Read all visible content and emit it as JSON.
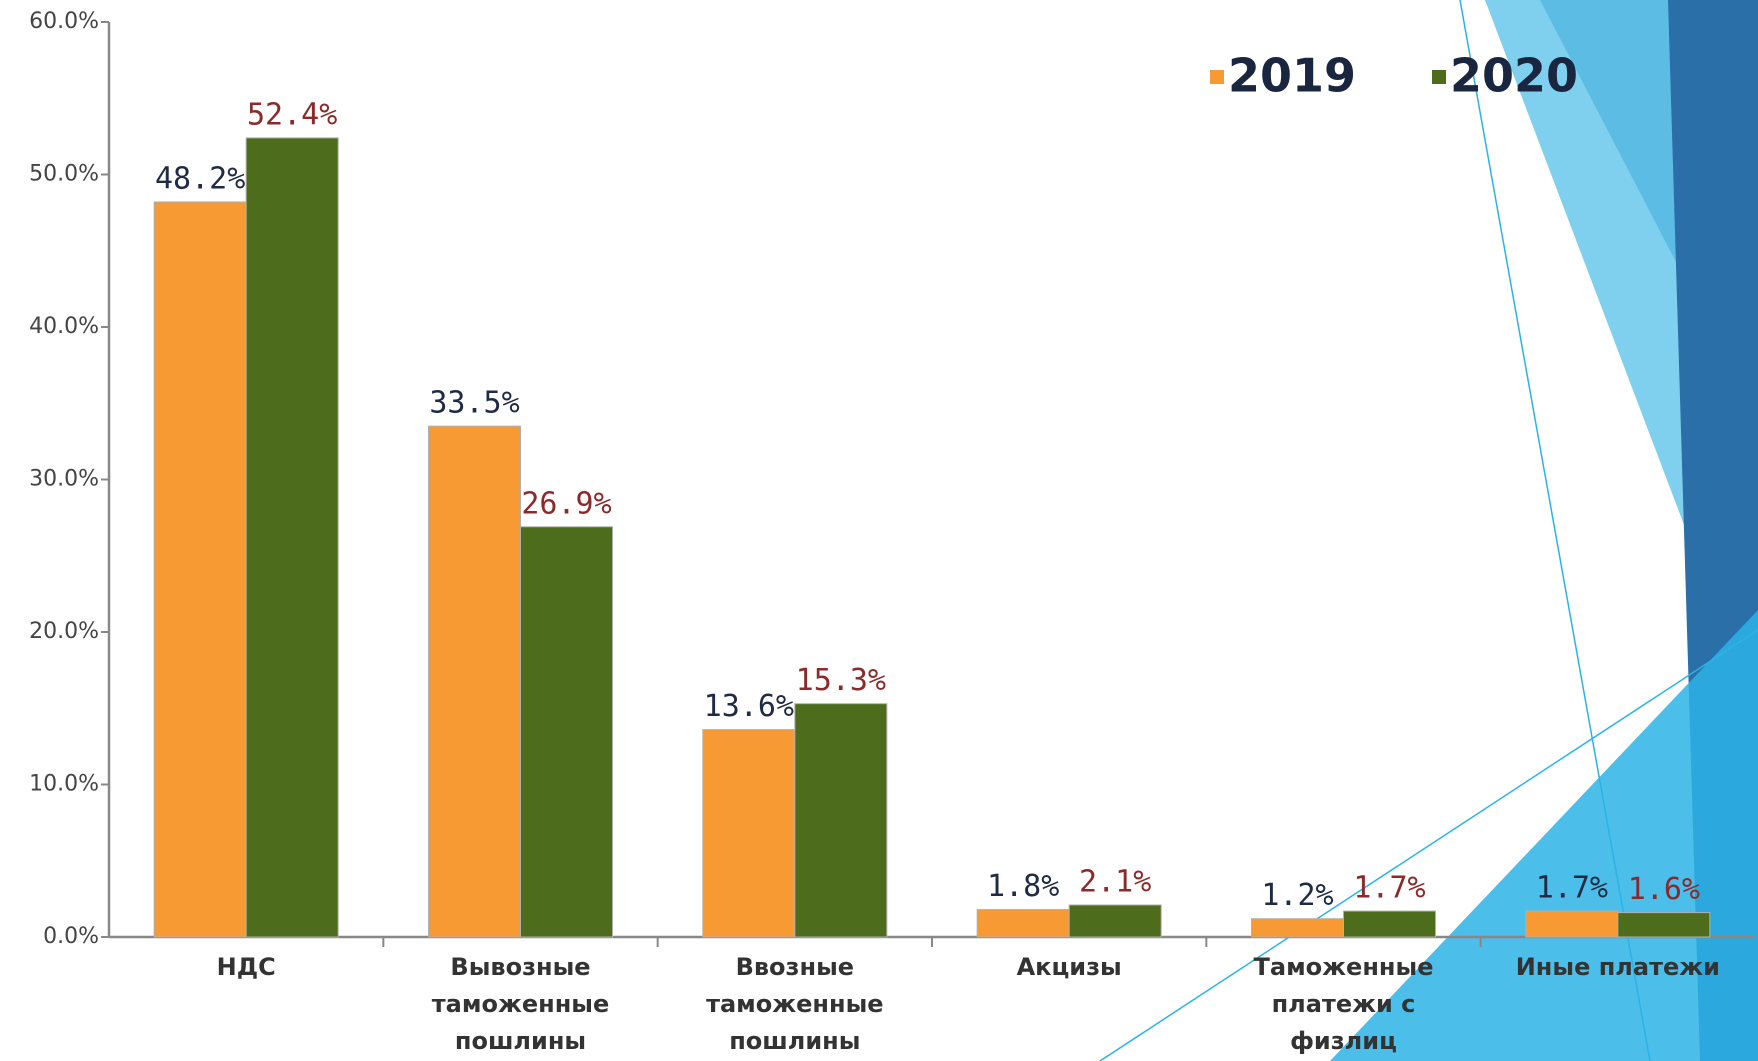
{
  "chart_data": {
    "type": "bar",
    "categories": [
      "НДС",
      "Вывозные таможенные пошлины",
      "Ввозные таможенные пошлины",
      "Акцизы",
      "Таможенные платежи с физлиц",
      "Иные платежи"
    ],
    "series": [
      {
        "name": "2019",
        "color": "#f79a34",
        "values": [
          48.2,
          33.5,
          13.6,
          1.8,
          1.2,
          1.7
        ],
        "value_labels": [
          "48.2%",
          "33.5%",
          "13.6%",
          "1.8%",
          "1.2%",
          "1.7%"
        ]
      },
      {
        "name": "2020",
        "color": "#4e6d1c",
        "values": [
          52.4,
          26.9,
          15.3,
          2.1,
          1.7,
          1.6
        ],
        "value_labels": [
          "52.4%",
          "26.9%",
          "15.3%",
          "2.1%",
          "1.7%",
          "1.6%"
        ]
      }
    ],
    "ylim": [
      0,
      60
    ],
    "yticks": [
      {
        "value": 0,
        "label": "0.0%"
      },
      {
        "value": 10,
        "label": "10.0%"
      },
      {
        "value": 20,
        "label": "20.0%"
      },
      {
        "value": 30,
        "label": "30.0%"
      },
      {
        "value": 40,
        "label": "40.0%"
      },
      {
        "value": 50,
        "label": "50.0%"
      },
      {
        "value": 60,
        "label": "60.0%"
      }
    ],
    "legend": "top-right"
  }
}
